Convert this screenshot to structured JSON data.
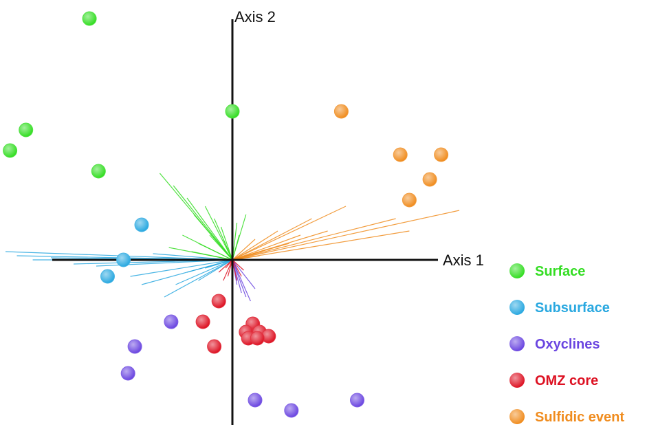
{
  "chart_data": {
    "type": "scatter",
    "title": "",
    "xlabel": "Axis 1",
    "ylabel": "Axis 2",
    "xlim": [
      -1.0,
      1.0
    ],
    "ylim": [
      -0.85,
      1.2
    ],
    "grid": false,
    "legend_position": "right",
    "series": [
      {
        "name": "Surface",
        "color": "#33dd22",
        "points": [
          [
            -0.63,
            1.17
          ],
          [
            -0.91,
            0.63
          ],
          [
            -0.98,
            0.53
          ],
          [
            -0.59,
            0.43
          ],
          [
            0.0,
            0.72
          ]
        ],
        "vectors": [
          [
            -0.32,
            0.42
          ],
          [
            -0.26,
            0.36
          ],
          [
            -0.2,
            0.3
          ],
          [
            -0.17,
            0.22
          ],
          [
            -0.12,
            0.26
          ],
          [
            -0.08,
            0.2
          ],
          [
            -0.05,
            0.16
          ],
          [
            -0.22,
            0.12
          ],
          [
            -0.15,
            0.08
          ],
          [
            -0.28,
            0.06
          ],
          [
            -0.1,
            0.12
          ],
          [
            0.02,
            0.18
          ],
          [
            0.06,
            0.22
          ],
          [
            0.03,
            0.12
          ],
          [
            -0.04,
            0.1
          ],
          [
            -0.18,
            0.04
          ]
        ]
      },
      {
        "name": "Subsurface",
        "color": "#29a8e0",
        "points": [
          [
            -0.4,
            0.17
          ],
          [
            -0.48,
            0.0
          ],
          [
            -0.55,
            -0.08
          ]
        ],
        "vectors": [
          [
            -1.0,
            0.04
          ],
          [
            -0.95,
            0.02
          ],
          [
            -0.88,
            0.0
          ],
          [
            -0.8,
            0.01
          ],
          [
            -0.7,
            -0.02
          ],
          [
            -0.6,
            -0.03
          ],
          [
            -0.45,
            -0.08
          ],
          [
            -0.4,
            -0.12
          ],
          [
            -0.3,
            -0.18
          ],
          [
            -0.25,
            -0.12
          ],
          [
            -0.2,
            -0.06
          ],
          [
            -0.35,
            0.03
          ],
          [
            -0.15,
            -0.1
          ],
          [
            -0.12,
            -0.04
          ]
        ]
      },
      {
        "name": "Oxyclines",
        "color": "#6a45e0",
        "points": [
          [
            -0.27,
            -0.3
          ],
          [
            -0.43,
            -0.42
          ],
          [
            -0.46,
            -0.55
          ],
          [
            0.1,
            -0.68
          ],
          [
            0.26,
            -0.73
          ],
          [
            0.55,
            -0.68
          ]
        ],
        "vectors": [
          [
            0.06,
            -0.18
          ],
          [
            0.08,
            -0.2
          ],
          [
            0.04,
            -0.16
          ],
          [
            0.1,
            -0.14
          ],
          [
            0.02,
            -0.12
          ]
        ]
      },
      {
        "name": "OMZ core",
        "color": "#dd1122",
        "points": [
          [
            -0.06,
            -0.2
          ],
          [
            -0.13,
            -0.3
          ],
          [
            -0.08,
            -0.42
          ],
          [
            0.09,
            -0.31
          ],
          [
            0.06,
            -0.35
          ],
          [
            0.12,
            -0.35
          ],
          [
            0.16,
            -0.37
          ],
          [
            0.07,
            -0.38
          ],
          [
            0.11,
            -0.38
          ]
        ],
        "vectors": [
          [
            -0.04,
            -0.1
          ],
          [
            -0.02,
            -0.08
          ],
          [
            0.0,
            -0.12
          ],
          [
            0.02,
            -0.1
          ],
          [
            0.04,
            -0.08
          ],
          [
            -0.06,
            -0.06
          ],
          [
            0.05,
            -0.05
          ],
          [
            -0.03,
            -0.04
          ]
        ]
      },
      {
        "name": "Sulfidic event",
        "color": "#f08c1e",
        "points": [
          [
            0.48,
            0.72
          ],
          [
            0.74,
            0.51
          ],
          [
            0.92,
            0.51
          ],
          [
            0.87,
            0.39
          ],
          [
            0.78,
            0.29
          ]
        ],
        "vectors": [
          [
            1.0,
            0.24
          ],
          [
            0.78,
            0.14
          ],
          [
            0.72,
            0.2
          ],
          [
            0.5,
            0.26
          ],
          [
            0.42,
            0.14
          ],
          [
            0.35,
            0.2
          ],
          [
            0.3,
            0.12
          ],
          [
            0.25,
            0.08
          ],
          [
            0.2,
            0.14
          ],
          [
            0.15,
            0.05
          ],
          [
            0.1,
            0.1
          ],
          [
            0.12,
            0.02
          ]
        ]
      }
    ]
  }
}
